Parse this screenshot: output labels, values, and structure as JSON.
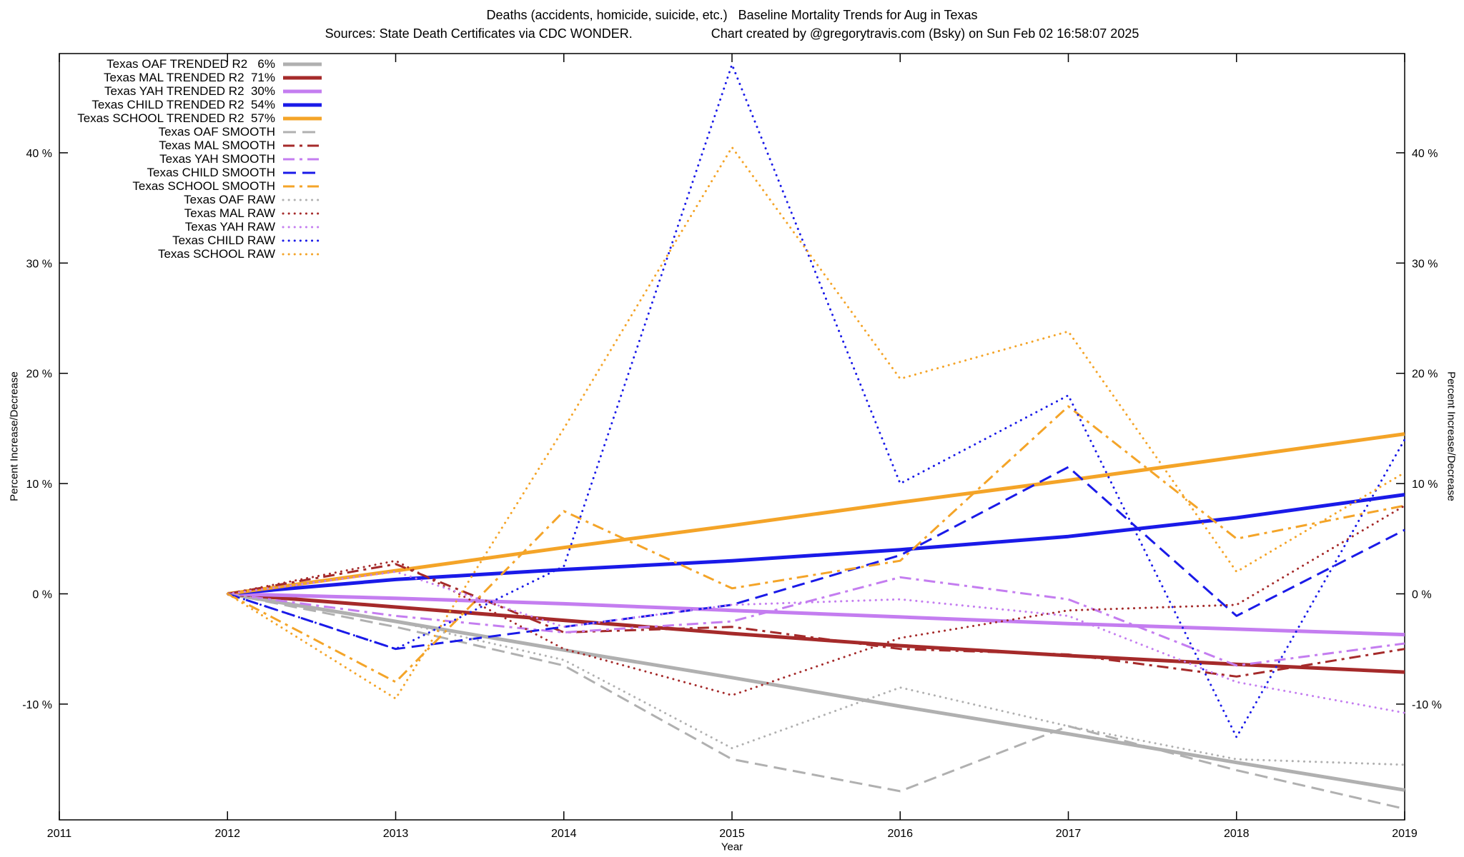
{
  "chart_data": {
    "type": "line",
    "title": "Deaths (accidents, homicide, suicide, etc.)   Baseline Mortality Trends for Aug in Texas",
    "sources": "Sources: State Death Certificates via CDC WONDER.",
    "credit": "Chart created by @gregorytravis.com (Bsky) on Sun Feb 02 16:58:07 2025",
    "xlabel": "Year",
    "ylabel_left": "Percent Increase/Decrease",
    "ylabel_right": "Percent Increase/Decrease",
    "xlim": [
      2011,
      2019
    ],
    "ylim": [
      -20.5,
      49
    ],
    "xticks": [
      2011,
      2012,
      2013,
      2014,
      2015,
      2016,
      2017,
      2018,
      2019
    ],
    "yticks": [
      -10,
      0,
      10,
      20,
      30,
      40
    ],
    "ytick_suffix": " %",
    "grid": false,
    "legend_position": "top-left",
    "x": [
      2012,
      2013,
      2014,
      2015,
      2016,
      2017,
      2018,
      2019
    ],
    "series": [
      {
        "id": "oaf-trended",
        "name": "Texas OAF TRENDED R2   6%",
        "r2": "6%",
        "color": "#b0b0b0",
        "style": "solid",
        "width": 5,
        "values": [
          0,
          -2.5,
          -5.1,
          -7.6,
          -10.2,
          -12.7,
          -15.3,
          -17.8
        ]
      },
      {
        "id": "mal-trended",
        "name": "Texas MAL TRENDED R2  71%",
        "r2": "71%",
        "color": "#a52a2a",
        "style": "solid",
        "width": 5,
        "values": [
          0,
          -1.2,
          -2.4,
          -3.6,
          -4.7,
          -5.6,
          -6.4,
          -7.1
        ]
      },
      {
        "id": "yah-trended",
        "name": "Texas YAH TRENDED R2  30%",
        "r2": "30%",
        "color": "#c47df0",
        "style": "solid",
        "width": 5,
        "values": [
          0,
          -0.4,
          -0.9,
          -1.5,
          -2.1,
          -2.7,
          -3.2,
          -3.7
        ]
      },
      {
        "id": "child-trended",
        "name": "Texas CHILD TRENDED R2  54%",
        "r2": "54%",
        "color": "#1a1ae8",
        "style": "solid",
        "width": 5,
        "values": [
          0,
          1.3,
          2.2,
          3.0,
          4.0,
          5.2,
          6.9,
          9.0
        ]
      },
      {
        "id": "school-trended",
        "name": "Texas SCHOOL TRENDED R2  57%",
        "r2": "57%",
        "color": "#f4a428",
        "style": "solid",
        "width": 5,
        "values": [
          0,
          2.1,
          4.2,
          6.2,
          8.3,
          10.3,
          12.4,
          14.5
        ]
      },
      {
        "id": "oaf-smooth",
        "name": "Texas OAF SMOOTH",
        "color": "#b0b0b0",
        "style": "dashed",
        "width": 3,
        "values": [
          0,
          -3.0,
          -6.5,
          -15.0,
          -17.9,
          -12.0,
          -16.0,
          -19.5
        ]
      },
      {
        "id": "mal-smooth",
        "name": "Texas MAL SMOOTH",
        "color": "#a52a2a",
        "style": "dashdot",
        "width": 3,
        "values": [
          0,
          2.7,
          -3.5,
          -3.0,
          -5.0,
          -5.5,
          -7.5,
          -5.0
        ]
      },
      {
        "id": "yah-smooth",
        "name": "Texas YAH SMOOTH",
        "color": "#c47df0",
        "style": "dashdot",
        "width": 3,
        "values": [
          0,
          -2.0,
          -3.5,
          -2.5,
          1.5,
          -0.5,
          -6.5,
          -4.5
        ]
      },
      {
        "id": "child-smooth",
        "name": "Texas CHILD SMOOTH",
        "color": "#1a1ae8",
        "style": "dashed",
        "width": 3,
        "values": [
          0,
          -5.0,
          -3.0,
          -1.0,
          3.5,
          11.5,
          -2.0,
          5.8
        ]
      },
      {
        "id": "school-smooth",
        "name": "Texas SCHOOL SMOOTH",
        "color": "#f4a428",
        "style": "dashdot",
        "width": 3,
        "values": [
          0,
          -8.0,
          7.5,
          0.5,
          3.0,
          17.0,
          5.0,
          8.0
        ]
      },
      {
        "id": "oaf-raw",
        "name": "Texas OAF RAW",
        "color": "#b0b0b0",
        "style": "dotted",
        "width": 3,
        "values": [
          0,
          -2.5,
          -6.0,
          -14.0,
          -8.5,
          -12.0,
          -15.0,
          -15.5
        ]
      },
      {
        "id": "mal-raw",
        "name": "Texas MAL RAW",
        "color": "#a52a2a",
        "style": "dotted",
        "width": 3,
        "values": [
          0,
          3.0,
          -5.0,
          -9.2,
          -4.0,
          -1.5,
          -1.0,
          8.0
        ]
      },
      {
        "id": "yah-raw",
        "name": "Texas YAH RAW",
        "color": "#c47df0",
        "style": "dotted",
        "width": 3,
        "values": [
          0,
          2.0,
          -3.0,
          -1.0,
          -0.5,
          -2.0,
          -8.0,
          -10.8
        ]
      },
      {
        "id": "child-raw",
        "name": "Texas CHILD RAW",
        "color": "#1a1ae8",
        "style": "dotted",
        "width": 3,
        "values": [
          0,
          -5.0,
          2.5,
          48.0,
          10.0,
          18.0,
          -13.0,
          14.0
        ]
      },
      {
        "id": "school-raw",
        "name": "Texas SCHOOL RAW",
        "color": "#f4a428",
        "style": "dotted",
        "width": 3,
        "values": [
          0,
          -9.5,
          15.0,
          40.5,
          19.5,
          23.8,
          2.0,
          11.0
        ]
      }
    ]
  }
}
